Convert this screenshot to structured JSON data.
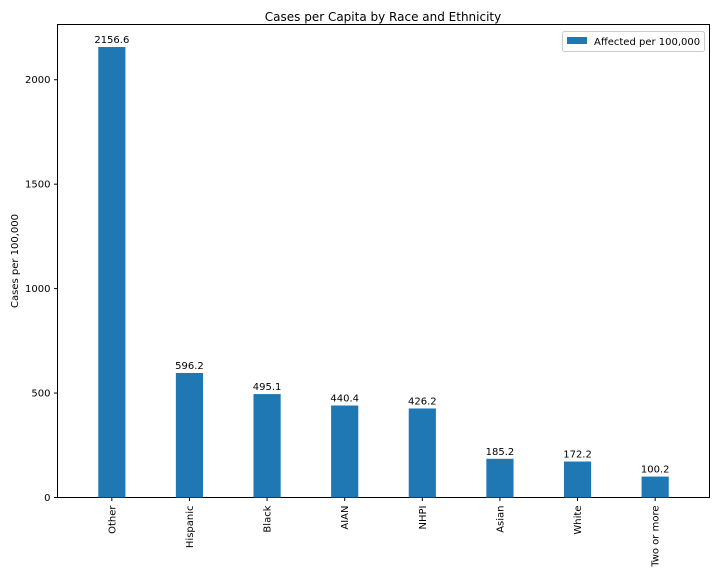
{
  "chart_data": {
    "type": "bar",
    "title": "Cases per Capita by Race and Ethnicity",
    "xlabel": "",
    "ylabel": "Cases per 100,000",
    "categories": [
      "Other",
      "Hispanic",
      "Black",
      "AIAN",
      "NHPI",
      "Asian",
      "White",
      "Two or more"
    ],
    "series": [
      {
        "name": "Affected per 100,000",
        "color": "#1f77b4",
        "values": [
          2156.6,
          596.2,
          495.1,
          440.4,
          426.2,
          185.2,
          172.2,
          100.2
        ]
      }
    ],
    "value_labels": [
      "2156.6",
      "596.2",
      "495.1",
      "440.4",
      "426.2",
      "185.2",
      "172.2",
      "100.2"
    ],
    "ylim": [
      0,
      2264.4
    ],
    "yticks": [
      0,
      500,
      1000,
      1500,
      2000
    ],
    "ytick_labels": [
      "0",
      "500",
      "1000",
      "1500",
      "2000"
    ],
    "grid": false,
    "legend_position": "upper right"
  }
}
